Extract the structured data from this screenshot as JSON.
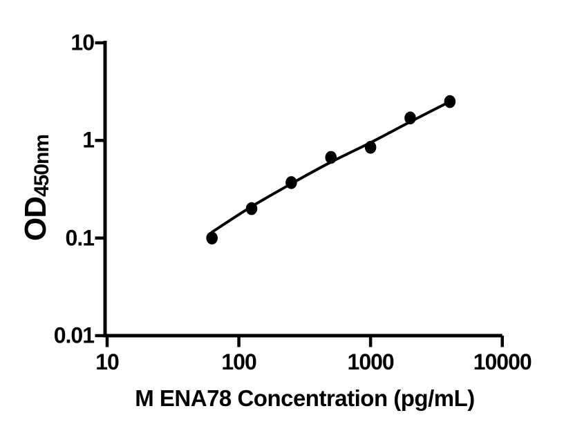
{
  "chart_data": {
    "type": "scatter",
    "title": "",
    "xlabel": "M ENA78 Concentration (pg/mL)",
    "ylabel": "OD",
    "ylabel_subscript": "450nm",
    "x_scale": "log",
    "y_scale": "log",
    "xlim": [
      10,
      10000
    ],
    "ylim": [
      0.01,
      10
    ],
    "grid": false,
    "legend": false,
    "x_tick_values": [
      10,
      100,
      1000,
      10000
    ],
    "x_tick_labels": [
      "10",
      "100",
      "1000",
      "10000"
    ],
    "y_tick_values": [
      10,
      1,
      0.1,
      0.01
    ],
    "y_tick_labels": [
      "10",
      "1",
      "0.1",
      "0.01"
    ],
    "series": [
      {
        "name": "standard-curve",
        "marker": "filled-circle",
        "points": [
          {
            "x": 62.5,
            "y": 0.1
          },
          {
            "x": 125,
            "y": 0.2
          },
          {
            "x": 250,
            "y": 0.37
          },
          {
            "x": 500,
            "y": 0.67
          },
          {
            "x": 1000,
            "y": 0.85
          },
          {
            "x": 2000,
            "y": 1.7
          },
          {
            "x": 4000,
            "y": 2.5
          }
        ]
      }
    ],
    "fit_curve": [
      {
        "x": 62.5,
        "y": 0.115
      },
      {
        "x": 125,
        "y": 0.21
      },
      {
        "x": 250,
        "y": 0.36
      },
      {
        "x": 500,
        "y": 0.6
      },
      {
        "x": 1000,
        "y": 0.95
      },
      {
        "x": 2000,
        "y": 1.55
      },
      {
        "x": 4000,
        "y": 2.5
      }
    ],
    "colors": {
      "background": "#ffffff",
      "axis": "#000000",
      "points": "#000000",
      "line": "#000000",
      "text": "#000000"
    }
  }
}
